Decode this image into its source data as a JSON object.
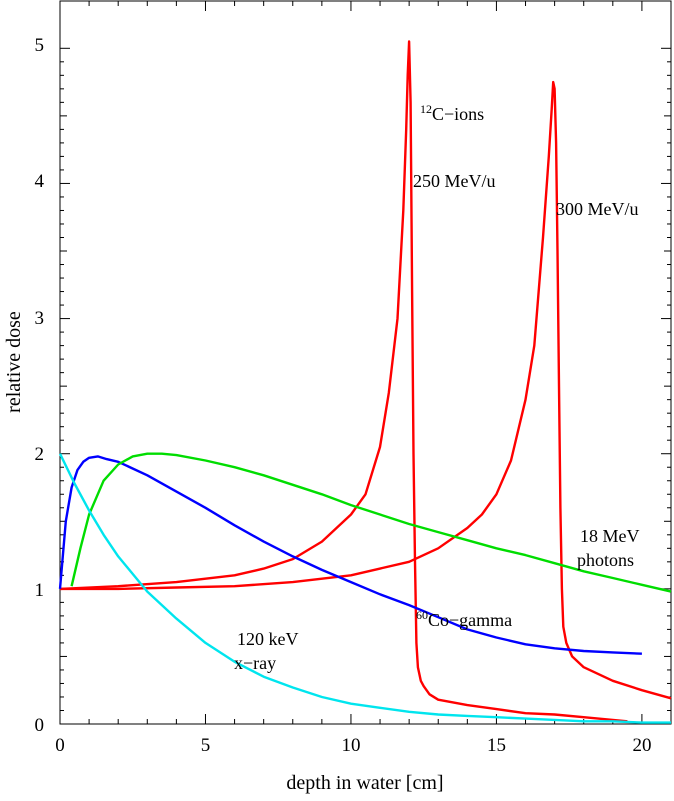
{
  "chart_data": {
    "type": "line",
    "xlabel": "depth in water [cm]",
    "ylabel": "relative dose",
    "xlim": [
      0,
      21
    ],
    "ylim": [
      0,
      5.35
    ],
    "xticks": [
      "0",
      "5",
      "10",
      "15",
      "20"
    ],
    "yticks": [
      "0",
      "1",
      "2",
      "3",
      "4",
      "5"
    ],
    "grid": false,
    "series": [
      {
        "color": "#ff0000",
        "x": [
          0,
          2,
          4,
          6,
          7,
          8,
          9,
          10,
          10.5,
          11,
          11.3,
          11.6,
          11.8,
          11.9,
          11.95,
          12.0,
          12.05,
          12.1,
          12.15,
          12.2,
          12.25,
          12.3,
          12.4,
          12.5,
          12.7,
          13,
          14,
          15,
          16,
          17,
          18,
          19,
          19.5
        ],
        "y": [
          1.0,
          1.02,
          1.05,
          1.1,
          1.15,
          1.22,
          1.35,
          1.55,
          1.7,
          2.05,
          2.45,
          3.0,
          3.8,
          4.4,
          4.8,
          5.05,
          4.6,
          3.2,
          2.0,
          1.2,
          0.6,
          0.42,
          0.32,
          0.28,
          0.22,
          0.18,
          0.14,
          0.11,
          0.08,
          0.07,
          0.05,
          0.03,
          0.02
        ]
      },
      {
        "color": "#ff0000",
        "x": [
          0,
          2,
          4,
          6,
          8,
          10,
          12,
          13,
          14,
          14.5,
          15,
          15.5,
          16,
          16.3,
          16.6,
          16.8,
          16.9,
          16.95,
          17.0,
          17.05,
          17.1,
          17.15,
          17.2,
          17.25,
          17.3,
          17.4,
          17.6,
          18,
          19,
          20,
          21
        ],
        "y": [
          1.0,
          1.0,
          1.01,
          1.02,
          1.05,
          1.1,
          1.2,
          1.3,
          1.45,
          1.55,
          1.7,
          1.95,
          2.4,
          2.8,
          3.6,
          4.2,
          4.55,
          4.75,
          4.7,
          4.3,
          3.5,
          2.5,
          1.6,
          1.0,
          0.72,
          0.6,
          0.5,
          0.42,
          0.32,
          0.25,
          0.19
        ]
      },
      {
        "color": "#0000ff",
        "x": [
          0,
          0.2,
          0.4,
          0.6,
          0.8,
          1.0,
          1.3,
          1.6,
          2,
          3,
          4,
          5,
          6,
          7,
          8,
          9,
          10,
          11,
          12,
          13,
          14,
          15,
          16,
          17,
          18,
          19,
          20
        ],
        "y": [
          1.0,
          1.5,
          1.75,
          1.88,
          1.94,
          1.97,
          1.98,
          1.96,
          1.94,
          1.84,
          1.72,
          1.6,
          1.47,
          1.35,
          1.24,
          1.14,
          1.05,
          0.96,
          0.88,
          0.79,
          0.7,
          0.64,
          0.59,
          0.56,
          0.54,
          0.53,
          0.52
        ]
      },
      {
        "color": "#00dd00",
        "x": [
          0.4,
          0.7,
          1,
          1.5,
          2,
          2.5,
          3,
          3.5,
          4,
          5,
          6,
          7,
          8,
          9,
          10,
          11,
          12,
          13,
          14,
          15,
          16,
          17,
          18,
          19,
          20,
          21
        ],
        "y": [
          1.02,
          1.3,
          1.55,
          1.8,
          1.92,
          1.98,
          2.0,
          2.0,
          1.99,
          1.95,
          1.9,
          1.84,
          1.77,
          1.7,
          1.62,
          1.55,
          1.48,
          1.42,
          1.36,
          1.3,
          1.25,
          1.19,
          1.13,
          1.08,
          1.03,
          0.98
        ]
      },
      {
        "color": "#00e5ee",
        "x": [
          0,
          0.5,
          1,
          1.5,
          2,
          3,
          4,
          5,
          6,
          7,
          8,
          9,
          10,
          11,
          12,
          13,
          14,
          15,
          16,
          17,
          18,
          19,
          20,
          21
        ],
        "y": [
          2.0,
          1.78,
          1.58,
          1.4,
          1.24,
          0.98,
          0.78,
          0.6,
          0.46,
          0.35,
          0.27,
          0.2,
          0.15,
          0.12,
          0.09,
          0.07,
          0.06,
          0.05,
          0.04,
          0.03,
          0.02,
          0.02,
          0.01,
          0.01
        ]
      }
    ],
    "annotations": {
      "carbon_sup": "12",
      "carbon": "C−ions",
      "e250": "250 MeV/u",
      "e300": "300 MeV/u",
      "photons_energy": "18 MeV",
      "photons": "photons",
      "cobalt_sup": "60",
      "cobalt": "Co−gamma",
      "xray_energy": "120 keV",
      "xray": "x−ray"
    }
  }
}
